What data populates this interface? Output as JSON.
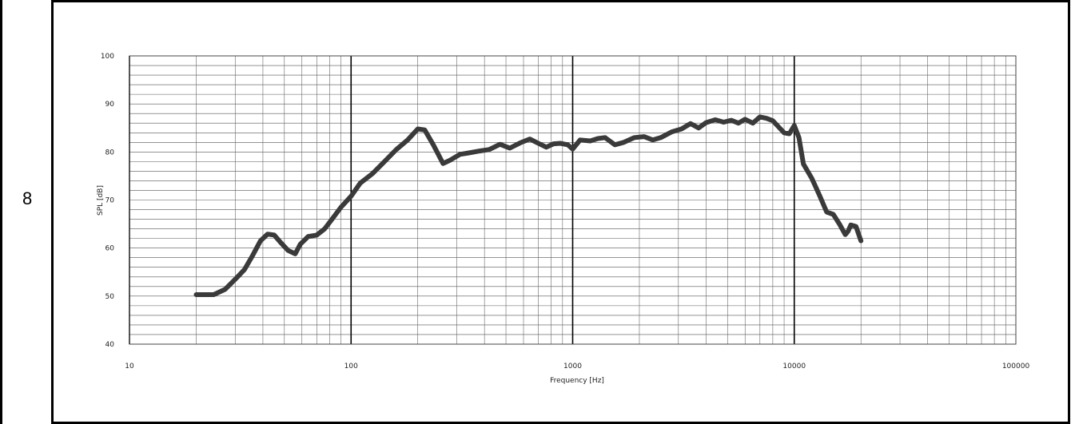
{
  "row_label": "8",
  "chart_data": {
    "type": "line",
    "title": "",
    "xlabel": "Frequency  [Hz]",
    "ylabel": "SPL  [dB]",
    "xscale": "log",
    "xlim": [
      10,
      100000
    ],
    "ylim": [
      40,
      100
    ],
    "xticks": [
      "10",
      "100",
      "1000",
      "10000",
      "100000"
    ],
    "yticks": [
      "40",
      "50",
      "60",
      "70",
      "80",
      "90",
      "100"
    ],
    "grid": true,
    "line_color": "#3a3a3a",
    "series": [
      {
        "x": [
          20,
          24,
          27,
          30,
          33,
          36,
          39,
          42,
          45,
          48,
          52,
          56,
          59,
          64,
          70,
          76,
          82,
          90,
          100,
          110,
          125,
          140,
          160,
          180,
          200,
          215,
          235,
          260,
          280,
          310,
          340,
          380,
          420,
          470,
          520,
          580,
          640,
          700,
          760,
          820,
          880,
          950,
          1000,
          1080,
          1200,
          1300,
          1400,
          1550,
          1700,
          1900,
          2100,
          2300,
          2500,
          2800,
          3100,
          3400,
          3700,
          4000,
          4400,
          4800,
          5200,
          5600,
          6000,
          6500,
          7000,
          7500,
          8000,
          8500,
          9000,
          9500,
          10000,
          10500,
          11000,
          12000,
          13000,
          14000,
          15000,
          16000,
          17000,
          17500,
          18000,
          19000,
          20000
        ],
        "y": [
          50.3,
          50.3,
          51.4,
          53.5,
          55.5,
          58.5,
          61.5,
          62.9,
          62.7,
          61.2,
          59.5,
          58.8,
          60.8,
          62.4,
          62.7,
          64.0,
          66.0,
          68.5,
          70.8,
          73.5,
          75.5,
          77.8,
          80.5,
          82.5,
          84.8,
          84.6,
          81.5,
          77.6,
          78.3,
          79.5,
          79.8,
          80.2,
          80.5,
          81.6,
          80.8,
          81.9,
          82.7,
          81.8,
          81.0,
          81.7,
          81.8,
          81.5,
          80.6,
          82.5,
          82.3,
          82.8,
          83.0,
          81.5,
          82.0,
          83.0,
          83.2,
          82.5,
          83.0,
          84.2,
          84.8,
          85.9,
          85.0,
          86.1,
          86.7,
          86.2,
          86.6,
          86.0,
          86.8,
          86.0,
          87.3,
          87.0,
          86.5,
          85.2,
          84.0,
          83.8,
          85.5,
          83.0,
          77.5,
          74.5,
          71.0,
          67.5,
          67.0,
          65.0,
          62.8,
          63.5,
          64.8,
          64.5,
          61.5
        ]
      }
    ]
  }
}
